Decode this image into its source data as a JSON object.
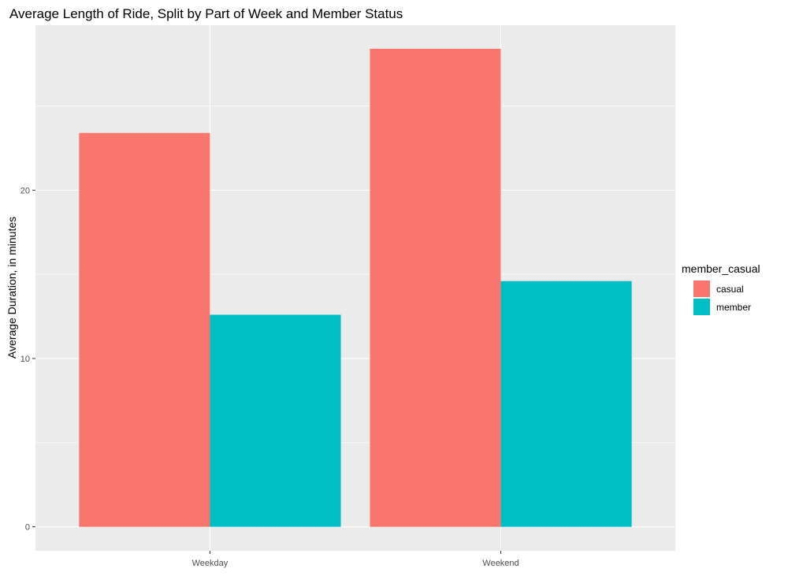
{
  "chart_data": {
    "type": "bar",
    "title": "Average Length of Ride, Split by Part of Week and Member Status",
    "xlabel": "",
    "ylabel": "Average Duration, in minutes",
    "categories": [
      "Weekday",
      "Weekend"
    ],
    "series": [
      {
        "name": "casual",
        "values": [
          23.4,
          28.4
        ],
        "color": "#F8766D"
      },
      {
        "name": "member",
        "values": [
          12.6,
          14.6
        ],
        "color": "#00BFC4"
      }
    ],
    "ylim": [
      -1.42,
      29.8
    ],
    "yticks": [
      0,
      10,
      20
    ],
    "ytick_labels": [
      "0",
      "10",
      "20"
    ],
    "grid": true,
    "legend": {
      "title": "member_casual",
      "placement": "right"
    },
    "panel_background": "#EBEBEB",
    "grid_color": "#FFFFFF"
  }
}
